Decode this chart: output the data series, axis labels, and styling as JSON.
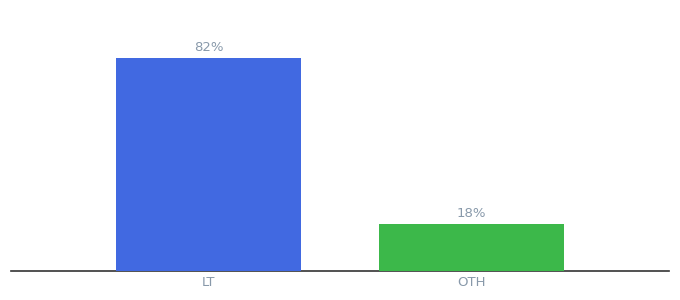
{
  "categories": [
    "LT",
    "OTH"
  ],
  "values": [
    82,
    18
  ],
  "bar_colors": [
    "#4169e1",
    "#3cb84a"
  ],
  "label_texts": [
    "82%",
    "18%"
  ],
  "background_color": "#ffffff",
  "ylim": [
    0,
    100
  ],
  "bar_width": 0.28,
  "label_fontsize": 9.5,
  "tick_fontsize": 9.5,
  "label_color": "#8899aa",
  "tick_color": "#8899aa"
}
